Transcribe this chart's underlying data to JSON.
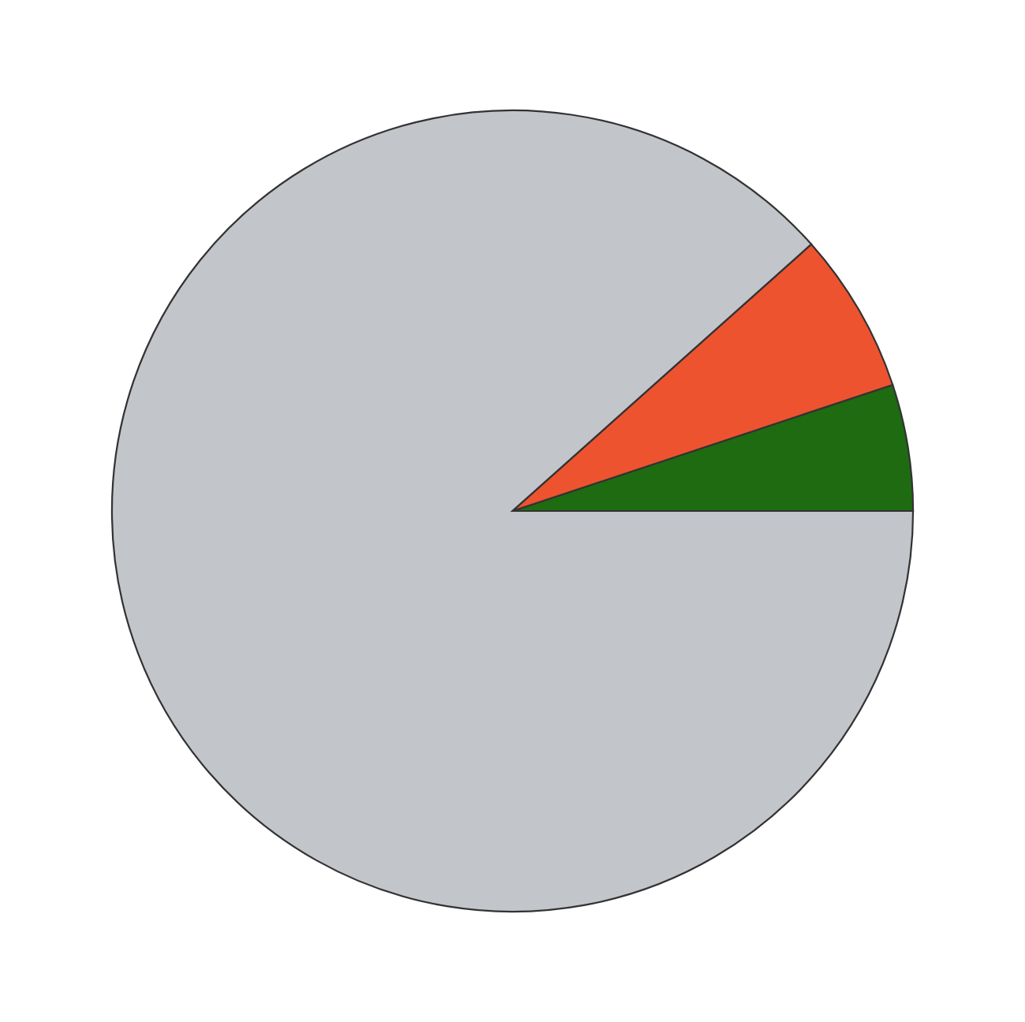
{
  "chart_data": {
    "type": "pie",
    "categories": [
      null,
      null,
      null
    ],
    "values": [
      5.1,
      6.5,
      88.4
    ],
    "colors": [
      "#1e6b12",
      "#ee5330",
      "#c2c5ca"
    ]
  }
}
